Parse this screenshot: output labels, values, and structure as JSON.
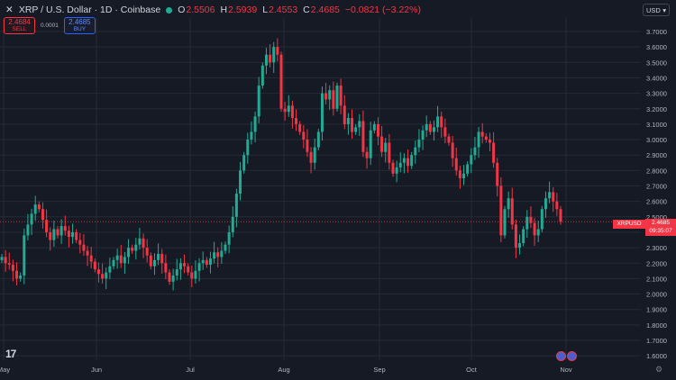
{
  "header": {
    "close_glyph": "✕",
    "symbol": "XRP / U.S. Dollar · 1D · Coinbase",
    "ohlc": [
      {
        "label": "O",
        "value": "2.5506"
      },
      {
        "label": "H",
        "value": "2.5939"
      },
      {
        "label": "L",
        "value": "2.4553"
      },
      {
        "label": "C",
        "value": "2.4685"
      }
    ],
    "change": "−0.0821 (−3.22%)"
  },
  "trade": {
    "sell_price": "2.4684",
    "sell_label": "SELL",
    "buy_price": "2.4685",
    "buy_label": "BUY",
    "spread": "0.0001"
  },
  "currency": "USD",
  "price_tag": {
    "symbol": "XRPUSD",
    "price": "2.4685",
    "countdown": "09:35:07"
  },
  "logo": "17",
  "colors": {
    "up": "#22ab94",
    "down": "#f23645",
    "bg": "#161a25",
    "grid": "#262a35"
  },
  "chart_data": {
    "type": "candlestick",
    "ylim": [
      1.55,
      3.8
    ],
    "y_ticks": [
      "3.7000",
      "3.6000",
      "3.5000",
      "3.4000",
      "3.3000",
      "3.2000",
      "3.1000",
      "3.0000",
      "2.9000",
      "2.8000",
      "2.7000",
      "2.6000",
      "2.5000",
      "2.4000",
      "2.3000",
      "2.2000",
      "2.1000",
      "2.0000",
      "1.9000",
      "1.8000",
      "1.7000",
      "1.6000"
    ],
    "x_labels": [
      "May",
      "Jun",
      "Jul",
      "Aug",
      "Sep",
      "Oct",
      "Nov"
    ],
    "current_price": 2.4685,
    "closes": [
      2.24,
      2.2,
      2.19,
      2.15,
      2.1,
      2.12,
      2.38,
      2.45,
      2.52,
      2.58,
      2.55,
      2.48,
      2.4,
      2.35,
      2.42,
      2.38,
      2.44,
      2.41,
      2.37,
      2.4,
      2.35,
      2.32,
      2.28,
      2.25,
      2.21,
      2.16,
      2.13,
      2.1,
      2.14,
      2.18,
      2.22,
      2.25,
      2.2,
      2.24,
      2.3,
      2.28,
      2.32,
      2.36,
      2.3,
      2.25,
      2.18,
      2.22,
      2.26,
      2.2,
      2.14,
      2.08,
      2.12,
      2.16,
      2.2,
      2.18,
      2.14,
      2.1,
      2.15,
      2.2,
      2.22,
      2.19,
      2.23,
      2.27,
      2.24,
      2.28,
      2.32,
      2.4,
      2.5,
      2.65,
      2.8,
      2.9,
      3.0,
      3.05,
      3.15,
      3.35,
      3.48,
      3.55,
      3.5,
      3.6,
      3.55,
      3.2,
      3.18,
      3.22,
      3.14,
      3.1,
      3.05,
      3.0,
      2.92,
      2.85,
      2.95,
      3.05,
      3.3,
      3.26,
      3.32,
      3.2,
      3.35,
      3.22,
      3.1,
      3.14,
      3.05,
      3.08,
      3.12,
      2.92,
      2.88,
      3.06,
      3.1,
      3.02,
      2.92,
      2.98,
      2.85,
      2.78,
      2.82,
      2.85,
      2.88,
      2.83,
      2.9,
      2.95,
      3.0,
      3.06,
      3.1,
      3.05,
      3.08,
      3.15,
      3.08,
      3.02,
      2.98,
      2.88,
      2.8,
      2.75,
      2.78,
      2.84,
      2.9,
      2.95,
      3.05,
      3.02,
      3.0,
      2.98,
      2.85,
      2.7,
      2.38,
      2.55,
      2.62,
      2.45,
      2.3,
      2.33,
      2.42,
      2.5,
      2.46,
      2.38,
      2.42,
      2.55,
      2.62,
      2.66,
      2.6,
      2.55,
      2.4685
    ]
  }
}
